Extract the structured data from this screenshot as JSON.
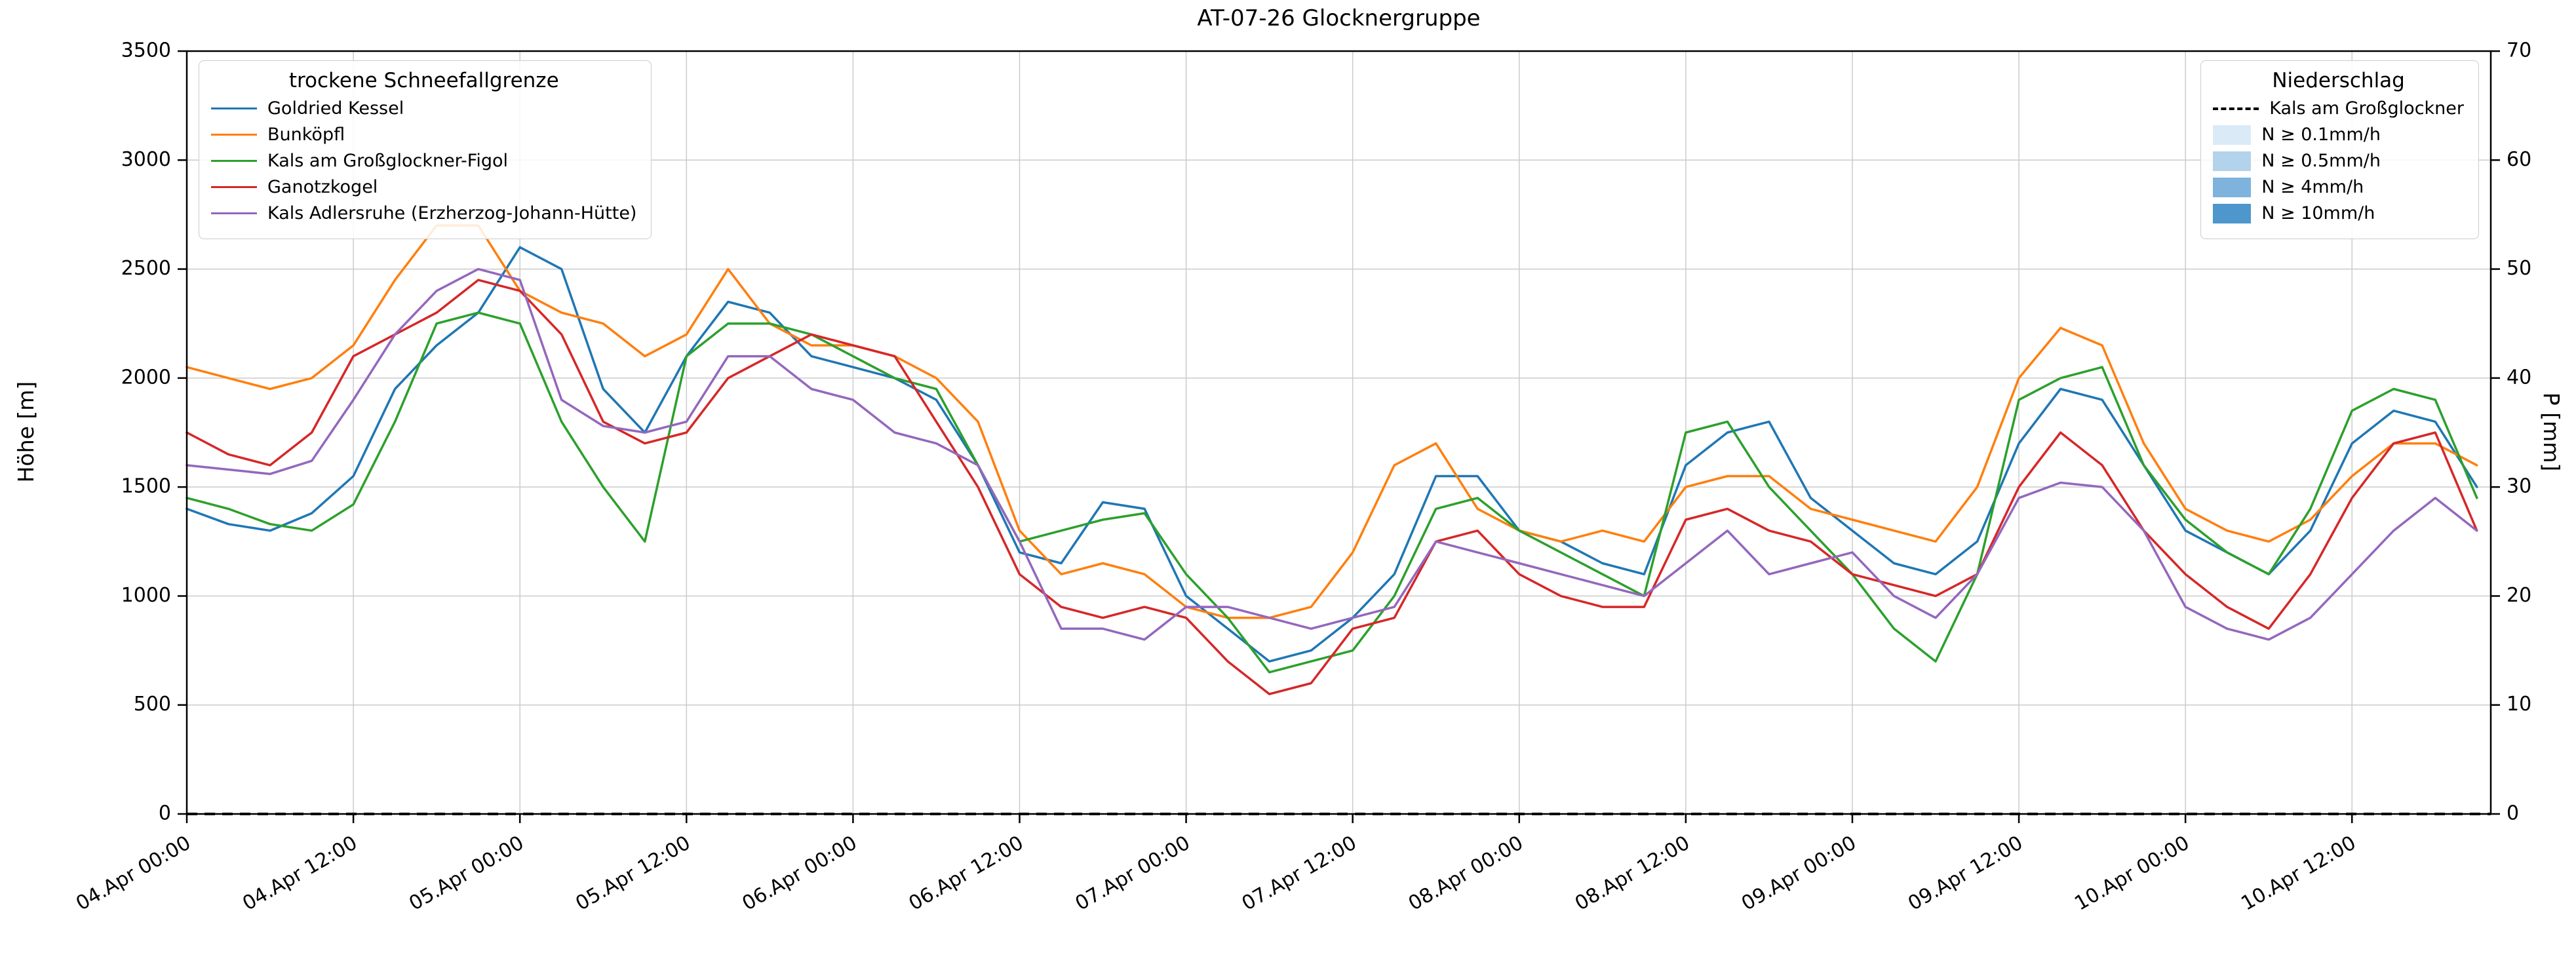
{
  "chart_data": {
    "type": "line",
    "title": "AT-07-26 Glocknergruppe",
    "ylabel": "Höhe [m]",
    "ylabel_right": "P [mm]",
    "ylim": [
      0,
      3500
    ],
    "yticks": [
      0,
      500,
      1000,
      1500,
      2000,
      2500,
      3000,
      3500
    ],
    "ylim_right": [
      0,
      70
    ],
    "yticks_right": [
      0,
      10,
      20,
      30,
      40,
      50,
      60,
      70
    ],
    "grid": true,
    "x_unit": "hours since 04.Apr 00:00",
    "xlim": [
      0,
      166
    ],
    "xticks": [
      0,
      12,
      24,
      36,
      48,
      60,
      72,
      84,
      96,
      108,
      120,
      132,
      144,
      156
    ],
    "xtick_labels": [
      "04.Apr 00:00",
      "04.Apr 12:00",
      "05.Apr 00:00",
      "05.Apr 12:00",
      "06.Apr 00:00",
      "06.Apr 12:00",
      "07.Apr 00:00",
      "07.Apr 12:00",
      "08.Apr 00:00",
      "08.Apr 12:00",
      "09.Apr 00:00",
      "09.Apr 12:00",
      "10.Apr 00:00",
      "10.Apr 12:00"
    ],
    "x": [
      0,
      3,
      6,
      9,
      12,
      15,
      18,
      21,
      24,
      27,
      30,
      33,
      36,
      39,
      42,
      45,
      48,
      51,
      54,
      57,
      60,
      63,
      66,
      69,
      72,
      75,
      78,
      81,
      84,
      87,
      90,
      93,
      96,
      99,
      102,
      105,
      108,
      111,
      114,
      117,
      120,
      123,
      126,
      129,
      132,
      135,
      138,
      141,
      144,
      147,
      150,
      153,
      156,
      159,
      162,
      165
    ],
    "series": [
      {
        "name": "Goldried Kessel",
        "color": "#1f77b4",
        "values": [
          1400,
          1330,
          1300,
          1380,
          1550,
          1950,
          2150,
          2300,
          2600,
          2500,
          1950,
          1750,
          2100,
          2350,
          2300,
          2100,
          2050,
          2000,
          1900,
          1600,
          1200,
          1150,
          1430,
          1400,
          1000,
          850,
          700,
          750,
          900,
          1100,
          1550,
          1550,
          1300,
          1250,
          1150,
          1100,
          1600,
          1750,
          1800,
          1450,
          1300,
          1150,
          1100,
          1250,
          1700,
          1950,
          1900,
          1600,
          1300,
          1200,
          1100,
          1300,
          1700,
          1850,
          1800,
          1500
        ]
      },
      {
        "name": "Bunköpfl",
        "color": "#ff7f0e",
        "values": [
          2050,
          2000,
          1950,
          2000,
          2150,
          2450,
          2700,
          2700,
          2400,
          2300,
          2250,
          2100,
          2200,
          2500,
          2250,
          2150,
          2150,
          2100,
          2000,
          1800,
          1300,
          1100,
          1150,
          1100,
          950,
          900,
          900,
          950,
          1200,
          1600,
          1700,
          1400,
          1300,
          1250,
          1300,
          1250,
          1500,
          1550,
          1550,
          1400,
          1350,
          1300,
          1250,
          1500,
          2000,
          2230,
          2150,
          1700,
          1400,
          1300,
          1250,
          1350,
          1550,
          1700,
          1700,
          1600
        ]
      },
      {
        "name": "Kals am Großglockner-Figol",
        "color": "#2ca02c",
        "values": [
          1450,
          1400,
          1330,
          1300,
          1420,
          1800,
          2250,
          2300,
          2250,
          1800,
          1500,
          1250,
          2100,
          2250,
          2250,
          2200,
          2100,
          2000,
          1950,
          1600,
          1250,
          1300,
          1350,
          1380,
          1100,
          900,
          650,
          700,
          750,
          1000,
          1400,
          1450,
          1300,
          1200,
          1100,
          1000,
          1750,
          1800,
          1500,
          1300,
          1100,
          850,
          700,
          1100,
          1900,
          2000,
          2050,
          1600,
          1350,
          1200,
          1100,
          1400,
          1850,
          1950,
          1900,
          1450
        ]
      },
      {
        "name": "Ganotzkogel",
        "color": "#d62728",
        "values": [
          1750,
          1650,
          1600,
          1750,
          2100,
          2200,
          2300,
          2450,
          2400,
          2200,
          1800,
          1700,
          1750,
          2000,
          2100,
          2200,
          2150,
          2100,
          1800,
          1500,
          1100,
          950,
          900,
          950,
          900,
          700,
          550,
          600,
          850,
          900,
          1250,
          1300,
          1100,
          1000,
          950,
          950,
          1350,
          1400,
          1300,
          1250,
          1100,
          1050,
          1000,
          1100,
          1500,
          1750,
          1600,
          1300,
          1100,
          950,
          850,
          1100,
          1450,
          1700,
          1750,
          1300
        ]
      },
      {
        "name": "Kals Adlersruhe (Erzherzog-Johann-Hütte)",
        "color": "#9467bd",
        "values": [
          1600,
          1580,
          1560,
          1620,
          1900,
          2200,
          2400,
          2500,
          2450,
          1900,
          1780,
          1750,
          1800,
          2100,
          2100,
          1950,
          1900,
          1750,
          1700,
          1600,
          1250,
          850,
          850,
          800,
          950,
          950,
          900,
          850,
          900,
          950,
          1250,
          1200,
          1150,
          1100,
          1050,
          1000,
          1150,
          1300,
          1100,
          1150,
          1200,
          1000,
          900,
          1100,
          1450,
          1520,
          1500,
          1300,
          950,
          850,
          800,
          900,
          1100,
          1300,
          1450,
          1300
        ]
      }
    ],
    "precipitation": {
      "name": "Kals am Großglockner",
      "axis": "right",
      "line_style": "dashed",
      "color": "#000000",
      "constant_value_mm": 0
    }
  },
  "legend_snowline": {
    "title": "trockene Schneefallgrenze"
  },
  "legend_precip": {
    "title": "Niederschlag",
    "line_label": "Kals am Großglockner",
    "thresholds": [
      {
        "label": "N ≥ 0.1mm/h",
        "color": "#dbeaf7"
      },
      {
        "label": "N ≥ 0.5mm/h",
        "color": "#b3d3ec"
      },
      {
        "label": "N ≥ 4mm/h",
        "color": "#7db3dd"
      },
      {
        "label": "N ≥ 10mm/h",
        "color": "#4e97cd"
      }
    ]
  },
  "style": {
    "grid_color": "#bfbfbf",
    "spine_color": "#000000",
    "background": "#ffffff"
  }
}
